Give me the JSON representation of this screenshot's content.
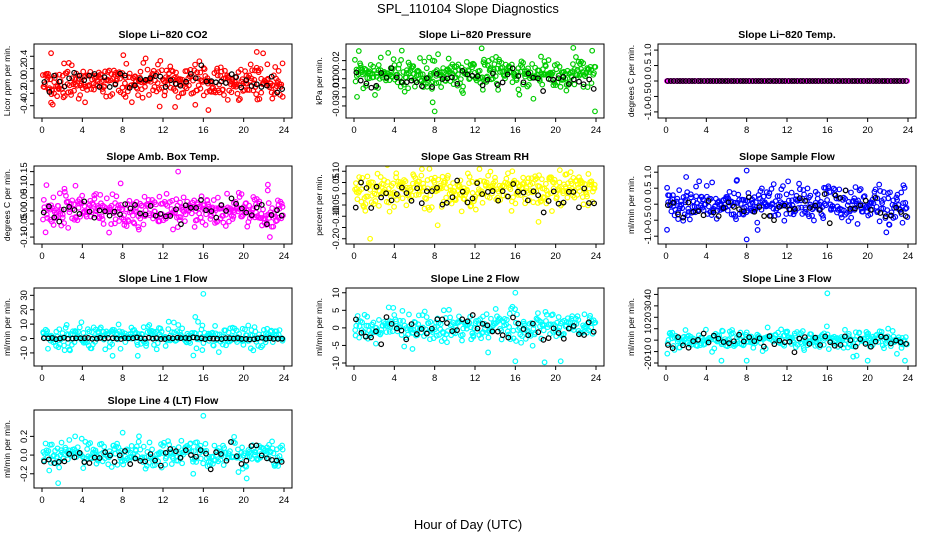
{
  "figure": {
    "title": "SPL_110104  Slope Diagnostics",
    "xlabel": "Hour of Day (UTC)"
  },
  "chart_data": [
    {
      "type": "scatter",
      "title": "Slope Li−820 CO2",
      "ylabel": "Licor ppm per min.",
      "xlim": [
        0,
        24
      ],
      "ylim": [
        -0.55,
        0.55
      ],
      "xticks": [
        0,
        4,
        8,
        12,
        16,
        20,
        24
      ],
      "yticks": [
        -0.4,
        -0.2,
        0.0,
        0.2,
        0.4
      ],
      "ytick_labels": [
        "-0.4",
        "-0.2",
        "0.0",
        "0.2",
        "0.4"
      ],
      "x_tick_labels": [
        "0",
        "4",
        "8",
        "12",
        "16",
        "20",
        "24"
      ],
      "series": [
        {
          "color": "#ff0000",
          "kind": "minute",
          "n": 360,
          "x_range": [
            0.1,
            23.9
          ],
          "center": 0.0,
          "spread": 0.14,
          "outliers": [
            [
              0.9,
              0.45
            ],
            [
              21.3,
              0.47
            ],
            [
              13.2,
              -0.42
            ],
            [
              16.5,
              -0.47
            ],
            [
              0.9,
              -0.35
            ]
          ]
        },
        {
          "color": "#000000",
          "kind": "hourly",
          "n": 48,
          "x_range": [
            0.2,
            23.8
          ],
          "center": 0.0,
          "spread": 0.09
        }
      ]
    },
    {
      "type": "scatter",
      "title": "Slope Li−820 Pressure",
      "ylabel": "kPa per min.",
      "xlim": [
        0,
        24
      ],
      "ylim": [
        -0.04,
        0.035
      ],
      "xticks": [
        0,
        4,
        8,
        12,
        16,
        20,
        24
      ],
      "yticks": [
        -0.03,
        -0.02,
        -0.01,
        0.0,
        0.01,
        0.02
      ],
      "ytick_labels": [
        "-0.03",
        "",
        "-0.01",
        "0.00",
        "",
        "0.02"
      ],
      "x_tick_labels": [
        "0",
        "4",
        "8",
        "12",
        "16",
        "20",
        "24"
      ],
      "series": [
        {
          "color": "#00cc00",
          "kind": "minute",
          "n": 360,
          "x_range": [
            0.1,
            23.9
          ],
          "center": 0.005,
          "spread": 0.0085,
          "outliers": [
            [
              8.0,
              -0.036
            ],
            [
              23.9,
              -0.036
            ],
            [
              7.8,
              -0.026
            ],
            [
              0.3,
              -0.02
            ]
          ]
        },
        {
          "color": "#000000",
          "kind": "hourly",
          "n": 48,
          "x_range": [
            0.2,
            23.8
          ],
          "center": 0.0,
          "spread": 0.005
        }
      ]
    },
    {
      "type": "scatter",
      "title": "Slope Li−820 Temp.",
      "ylabel": "degrees C per min.",
      "xlim": [
        0,
        24
      ],
      "ylim": [
        -1.1,
        1.1
      ],
      "xticks": [
        0,
        4,
        8,
        12,
        16,
        20,
        24
      ],
      "yticks": [
        -1.0,
        -0.5,
        0.0,
        0.5,
        1.0
      ],
      "ytick_labels": [
        "-1.0",
        "-0.5",
        "0.0",
        "0.5",
        "1.0"
      ],
      "x_tick_labels": [
        "0",
        "4",
        "8",
        "12",
        "16",
        "20",
        "24"
      ],
      "series": [
        {
          "color": "#ff00ff",
          "kind": "minute",
          "n": 170,
          "x_range": [
            0.1,
            23.9
          ],
          "center": 0.0,
          "spread": 0.0
        },
        {
          "color": "#000000",
          "kind": "hourly",
          "n": 80,
          "x_range": [
            0.2,
            23.8
          ],
          "center": 0.0,
          "spread": 0.0
        }
      ]
    },
    {
      "type": "scatter",
      "title": "Slope Amb. Box Temp.",
      "ylabel": "degrees C per min.",
      "xlim": [
        0,
        24
      ],
      "ylim": [
        -0.115,
        0.16
      ],
      "xticks": [
        0,
        4,
        8,
        12,
        16,
        20,
        24
      ],
      "yticks": [
        -0.1,
        -0.05,
        0.0,
        0.05,
        0.1,
        0.15
      ],
      "ytick_labels": [
        "-0.10",
        "-0.05",
        "0.00",
        "0.05",
        "0.10",
        "0.15"
      ],
      "x_tick_labels": [
        "0",
        "4",
        "8",
        "12",
        "16",
        "20",
        "24"
      ],
      "series": [
        {
          "color": "#ff00ff",
          "kind": "minute",
          "n": 360,
          "x_range": [
            0.1,
            23.9
          ],
          "center": 0.0,
          "spread": 0.033,
          "outliers": [
            [
              13.5,
              0.15
            ],
            [
              7.8,
              0.105
            ],
            [
              22.4,
              0.1
            ],
            [
              22.6,
              -0.1
            ]
          ]
        },
        {
          "color": "#000000",
          "kind": "hourly",
          "n": 48,
          "x_range": [
            0.2,
            23.8
          ],
          "center": 0.0,
          "spread": 0.022
        }
      ]
    },
    {
      "type": "scatter",
      "title": "Slope Gas Stream RH",
      "ylabel": "percent per min.",
      "xlim": [
        0,
        24
      ],
      "ylim": [
        -0.21,
        0.11
      ],
      "xticks": [
        0,
        4,
        8,
        12,
        16,
        20,
        24
      ],
      "yticks": [
        -0.2,
        -0.15,
        -0.1,
        -0.05,
        0.0,
        0.05,
        0.1
      ],
      "ytick_labels": [
        "-0.20",
        "",
        "-0.10",
        "-0.05",
        "",
        "0.05",
        "0.10"
      ],
      "x_tick_labels": [
        "0",
        "4",
        "8",
        "12",
        "16",
        "20",
        "24"
      ],
      "series": [
        {
          "color": "#ffff00",
          "kind": "minute",
          "n": 360,
          "x_range": [
            0.1,
            23.9
          ],
          "center": 0.02,
          "spread": 0.04,
          "outliers": [
            [
              1.6,
              -0.2
            ],
            [
              8.3,
              -0.14
            ],
            [
              15.7,
              0.1
            ],
            [
              18.3,
              -0.125
            ]
          ]
        },
        {
          "color": "#000000",
          "kind": "hourly",
          "n": 48,
          "x_range": [
            0.2,
            23.8
          ],
          "center": -0.01,
          "spread": 0.03
        }
      ]
    },
    {
      "type": "scatter",
      "title": "Slope Sample Flow",
      "ylabel": "ml/min per min.",
      "xlim": [
        0,
        24
      ],
      "ylim": [
        -1.15,
        1.1
      ],
      "xticks": [
        0,
        4,
        8,
        12,
        16,
        20,
        24
      ],
      "yticks": [
        -1.0,
        -0.5,
        0.0,
        0.5,
        1.0
      ],
      "ytick_labels": [
        "-1.0",
        "-0.5",
        "0.0",
        "0.5",
        "1.0"
      ],
      "x_tick_labels": [
        "0",
        "4",
        "8",
        "12",
        "16",
        "20",
        "24"
      ],
      "series": [
        {
          "color": "#0000ff",
          "kind": "minute",
          "n": 360,
          "x_range": [
            0.1,
            23.9
          ],
          "center": 0.0,
          "spread": 0.28,
          "outliers": [
            [
              8.0,
              1.05
            ],
            [
              8.0,
              -1.1
            ],
            [
              2.0,
              0.85
            ],
            [
              0.1,
              -0.8
            ]
          ]
        },
        {
          "color": "#000000",
          "kind": "hourly",
          "n": 48,
          "x_range": [
            0.2,
            23.8
          ],
          "center": -0.05,
          "spread": 0.22
        }
      ]
    },
    {
      "type": "scatter",
      "title": "Slope Line 1 Flow",
      "ylabel": "ml/min per min.",
      "xlim": [
        0,
        24
      ],
      "ylim": [
        -17,
        33
      ],
      "xticks": [
        0,
        4,
        8,
        12,
        16,
        20,
        24
      ],
      "yticks": [
        -10,
        0,
        10,
        20,
        30
      ],
      "ytick_labels": [
        "-10",
        "0",
        "10",
        "20",
        "30"
      ],
      "x_tick_labels": [
        "0",
        "4",
        "8",
        "12",
        "16",
        "20",
        "24"
      ],
      "series": [
        {
          "color": "#00ffff",
          "kind": "minute",
          "n": 300,
          "x_range": [
            0.1,
            23.9
          ],
          "center": 1.5,
          "spread": 4.0,
          "outliers": [
            [
              16.0,
              31
            ],
            [
              15.2,
              15
            ],
            [
              7.0,
              -12
            ],
            [
              9.5,
              -12
            ],
            [
              15.9,
              -8
            ]
          ]
        },
        {
          "color": "#000000",
          "kind": "hourly",
          "n": 60,
          "x_range": [
            0.2,
            23.8
          ],
          "center": 0.0,
          "spread": 0.3
        }
      ]
    },
    {
      "type": "scatter",
      "title": "Slope Line 2 Flow",
      "ylabel": "ml/min per min.",
      "xlim": [
        0,
        24
      ],
      "ylim": [
        -10,
        10.5
      ],
      "xticks": [
        0,
        4,
        8,
        12,
        16,
        20,
        24
      ],
      "yticks": [
        -10,
        -5,
        0,
        5,
        10
      ],
      "ytick_labels": [
        "-10",
        "-5",
        "0",
        "5",
        "10"
      ],
      "x_tick_labels": [
        "0",
        "4",
        "8",
        "12",
        "16",
        "20",
        "24"
      ],
      "series": [
        {
          "color": "#00ffff",
          "kind": "minute",
          "n": 300,
          "x_range": [
            0.1,
            23.9
          ],
          "center": 0.5,
          "spread": 2.2,
          "outliers": [
            [
              16.0,
              10
            ],
            [
              20.5,
              -9.5
            ],
            [
              16.0,
              -9.5
            ],
            [
              18.9,
              -9.8
            ],
            [
              13.3,
              -7
            ],
            [
              5.8,
              -6
            ]
          ]
        },
        {
          "color": "#000000",
          "kind": "hourly",
          "n": 48,
          "x_range": [
            0.2,
            23.8
          ],
          "center": 0.0,
          "spread": 2.0
        }
      ]
    },
    {
      "type": "scatter",
      "title": "Slope Line 3 Flow",
      "ylabel": "ml/min per min.",
      "xlim": [
        0,
        24
      ],
      "ylim": [
        -20,
        43
      ],
      "xticks": [
        0,
        4,
        8,
        12,
        16,
        20,
        24
      ],
      "yticks": [
        -20,
        -10,
        0,
        10,
        20,
        30,
        40
      ],
      "ytick_labels": [
        "-20",
        "-10",
        "0",
        "10",
        "20",
        "30",
        "40"
      ],
      "x_tick_labels": [
        "0",
        "4",
        "8",
        "12",
        "16",
        "20",
        "24"
      ],
      "series": [
        {
          "color": "#00ffff",
          "kind": "minute",
          "n": 300,
          "x_range": [
            0.1,
            23.9
          ],
          "center": 0.0,
          "spread": 4.0,
          "outliers": [
            [
              16.0,
              41
            ],
            [
              5.5,
              -18
            ],
            [
              8.0,
              -18
            ],
            [
              20.0,
              -18
            ],
            [
              23.7,
              -18
            ]
          ]
        },
        {
          "color": "#000000",
          "kind": "hourly",
          "n": 48,
          "x_range": [
            0.2,
            23.8
          ],
          "center": -1.0,
          "spread": 3.0
        }
      ]
    },
    {
      "type": "scatter",
      "title": "Slope Line 4 (LT) Flow",
      "ylabel": "ml/min per min.",
      "xlim": [
        0,
        24
      ],
      "ylim": [
        -0.32,
        0.45
      ],
      "xticks": [
        0,
        4,
        8,
        12,
        16,
        20,
        24
      ],
      "yticks": [
        -0.2,
        0.0,
        0.2
      ],
      "ytick_labels": [
        "-0.2",
        "0.0",
        "0.2"
      ],
      "x_tick_labels": [
        "0",
        "4",
        "8",
        "12",
        "16",
        "20",
        "24"
      ],
      "series": [
        {
          "color": "#00ffff",
          "kind": "minute",
          "n": 300,
          "x_range": [
            0.1,
            23.9
          ],
          "center": 0.02,
          "spread": 0.07,
          "outliers": [
            [
              16.0,
              0.42
            ],
            [
              8.0,
              0.24
            ],
            [
              1.6,
              -0.3
            ],
            [
              20.3,
              -0.25
            ],
            [
              15.0,
              -0.2
            ]
          ]
        },
        {
          "color": "#000000",
          "kind": "hourly",
          "n": 48,
          "x_range": [
            0.2,
            23.8
          ],
          "center": -0.02,
          "spread": 0.055
        }
      ]
    }
  ]
}
